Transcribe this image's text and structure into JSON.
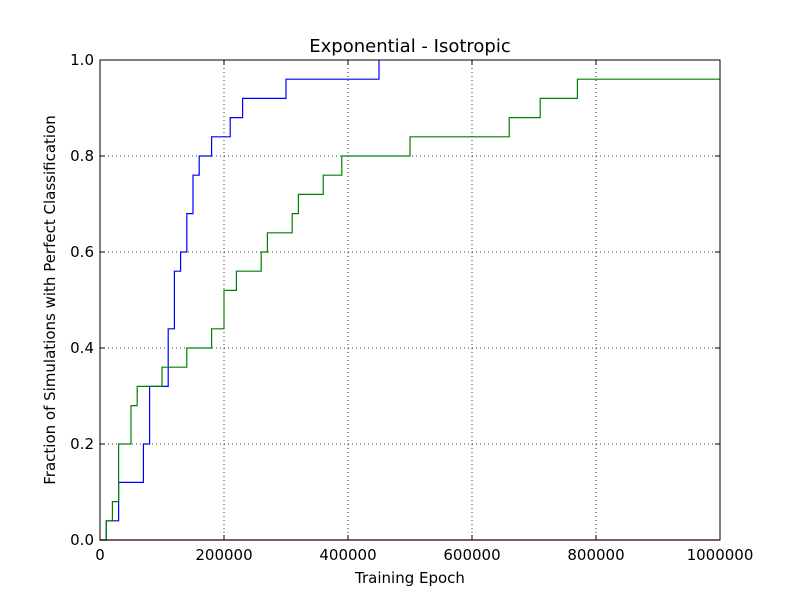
{
  "chart_data": {
    "type": "line",
    "step": true,
    "title": "Exponential - Isotropic",
    "xlabel": "Training Epoch",
    "ylabel": "Fraction of Simulations with Perfect Classification",
    "xlim": [
      0,
      1000000
    ],
    "ylim": [
      0,
      1
    ],
    "xticks": [
      0,
      200000,
      400000,
      600000,
      800000,
      1000000
    ],
    "yticks": [
      0.0,
      0.2,
      0.4,
      0.6,
      0.8,
      1.0
    ],
    "xtick_labels": [
      "0",
      "200000",
      "400000",
      "600000",
      "800000",
      "1000000"
    ],
    "ytick_labels": [
      "0.0",
      "0.2",
      "0.4",
      "0.6",
      "0.8",
      "1.0"
    ],
    "grid": true,
    "series": [
      {
        "color": "#0000ff",
        "x": [
          0,
          10000,
          10000,
          30000,
          30000,
          70000,
          70000,
          80000,
          80000,
          110000,
          110000,
          120000,
          120000,
          130000,
          130000,
          140000,
          140000,
          150000,
          150000,
          160000,
          160000,
          180000,
          180000,
          210000,
          210000,
          230000,
          230000,
          300000,
          300000,
          450000,
          450000
        ],
        "y": [
          0.0,
          0.0,
          0.04,
          0.04,
          0.12,
          0.12,
          0.2,
          0.2,
          0.32,
          0.32,
          0.44,
          0.44,
          0.56,
          0.56,
          0.6,
          0.6,
          0.68,
          0.68,
          0.76,
          0.76,
          0.8,
          0.8,
          0.84,
          0.84,
          0.88,
          0.88,
          0.92,
          0.92,
          0.96,
          0.96,
          1.0
        ]
      },
      {
        "color": "#008000",
        "x": [
          0,
          10000,
          10000,
          20000,
          20000,
          30000,
          30000,
          50000,
          50000,
          60000,
          60000,
          100000,
          100000,
          140000,
          140000,
          180000,
          180000,
          200000,
          200000,
          220000,
          220000,
          260000,
          260000,
          270000,
          270000,
          310000,
          310000,
          320000,
          320000,
          360000,
          360000,
          390000,
          390000,
          500000,
          500000,
          660000,
          660000,
          710000,
          710000,
          770000,
          770000,
          1000000
        ],
        "y": [
          0.0,
          0.0,
          0.04,
          0.04,
          0.08,
          0.08,
          0.2,
          0.2,
          0.28,
          0.28,
          0.32,
          0.32,
          0.36,
          0.36,
          0.4,
          0.4,
          0.44,
          0.44,
          0.52,
          0.52,
          0.56,
          0.56,
          0.6,
          0.6,
          0.64,
          0.64,
          0.68,
          0.68,
          0.72,
          0.72,
          0.76,
          0.76,
          0.8,
          0.8,
          0.84,
          0.84,
          0.88,
          0.88,
          0.92,
          0.92,
          0.96,
          0.96
        ]
      },
      {
        "color": "#cc0000",
        "x": [
          0,
          1000000
        ],
        "y": [
          0.0,
          0.0
        ]
      }
    ]
  }
}
